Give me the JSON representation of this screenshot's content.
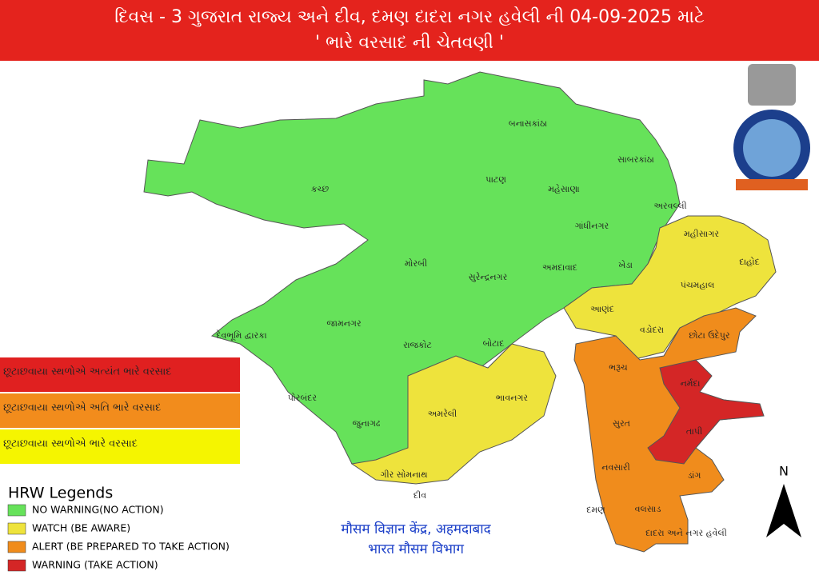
{
  "header": {
    "title": "દિવસ - 3 ગુજરાત રાજ્ય અને દીવ, દમણ દાદરા નગર હવેલી ની 04-09-2025 માટે",
    "subtitle": "' ભારે વરસાદ ની ચેતવણી '"
  },
  "districts": [
    "કચ્છ",
    "બનાસકાંઠા",
    "પાટણ",
    "મહેસાણા",
    "સાબરકાંઠા",
    "અરવલ્લી",
    "ગાંધીનગર",
    "મહીસાગર",
    "દાહોદ",
    "પંચમહાલ",
    "ખેડા",
    "અમદાવાદ",
    "સુરેન્દ્રનગર",
    "મોરબી",
    "આણંદ",
    "વડોદરા",
    "છોટા ઉદેપુર",
    "દેવભૂમિ દ્વારકા",
    "જામનગર",
    "રાજકોટ",
    "બોટાદ",
    "ભરૂચ",
    "નર્મદા",
    "ભાવનગર",
    "અમરેલી",
    "પોરબંદર",
    "જુનાગઢ",
    "સુરત",
    "તાપી",
    "ગીર સોમનાથ",
    "દીવ",
    "નવસારી",
    "ડાંગ",
    "વલસાડ",
    "દમણ",
    "દાદરા અને નગર હવેલી"
  ],
  "rain_legend": [
    {
      "label": "છૂટાછવાયા સ્થળોએ અત્યંત ભારે વરસાદ",
      "color": "#e02020"
    },
    {
      "label": "છૂટાછવાયા સ્થળોએ અતિ ભારે વરસાદ",
      "color": "#f28c1c"
    },
    {
      "label": "છૂટાછવાયા સ્થળોએ ભારે વરસાદ",
      "color": "#f5f500"
    }
  ],
  "hrw_legend": {
    "title": "HRW Legends",
    "items": [
      {
        "label": "NO WARNING(NO ACTION)",
        "color": "#66e25a"
      },
      {
        "label": "WATCH (BE AWARE)",
        "color": "#eee33c"
      },
      {
        "label": "ALERT (BE PREPARED TO TAKE ACTION)",
        "color": "#f08c1c"
      },
      {
        "label": "WARNING (TAKE ACTION)",
        "color": "#d42626"
      }
    ]
  },
  "footer": {
    "line1": "मौसम विज्ञान केंद्र, अहमदाबाद",
    "line2": "भारत मौसम विभाग"
  },
  "north": "N"
}
